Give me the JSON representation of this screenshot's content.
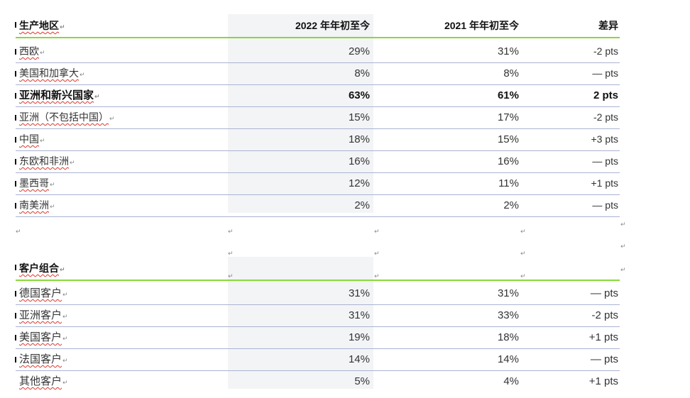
{
  "table1": {
    "headers": [
      "生产地区",
      "2022 年年初至今",
      "2021 年年初至今",
      "差异"
    ],
    "rows": [
      {
        "name": "西欧",
        "y2022": "29%",
        "y2021": "31%",
        "diff": "-2 pts",
        "bold": false
      },
      {
        "name": "美国和加拿大",
        "y2022": "8%",
        "y2021": "8%",
        "diff": "— pts",
        "bold": false
      },
      {
        "name": "亚洲和新兴国家",
        "y2022": "63%",
        "y2021": "61%",
        "diff": "2 pts",
        "bold": true
      },
      {
        "name": "亚洲（不包括中国）",
        "y2022": "15%",
        "y2021": "17%",
        "diff": "-2 pts",
        "bold": false
      },
      {
        "name": "中国",
        "y2022": "18%",
        "y2021": "15%",
        "diff": "+3 pts",
        "bold": false
      },
      {
        "name": "东欧和非洲",
        "y2022": "16%",
        "y2021": "16%",
        "diff": "— pts",
        "bold": false
      },
      {
        "name": "墨西哥",
        "y2022": "12%",
        "y2021": "11%",
        "diff": "+1 pts",
        "bold": false
      },
      {
        "name": "南美洲",
        "y2022": "2%",
        "y2021": "2%",
        "diff": "— pts",
        "bold": false
      }
    ]
  },
  "table2": {
    "header": "客户组合",
    "rows": [
      {
        "name": "德国客户",
        "y2022": "31%",
        "y2021": "31%",
        "diff": "— pts"
      },
      {
        "name": "亚洲客户",
        "y2022": "31%",
        "y2021": "33%",
        "diff": "-2 pts"
      },
      {
        "name": "美国客户",
        "y2022": "19%",
        "y2021": "18%",
        "diff": "+1 pts"
      },
      {
        "name": "法国客户",
        "y2022": "14%",
        "y2021": "14%",
        "diff": "— pts"
      },
      {
        "name": "其他客户",
        "y2022": "5%",
        "y2021": "4%",
        "diff": "+1 pts"
      }
    ]
  }
}
